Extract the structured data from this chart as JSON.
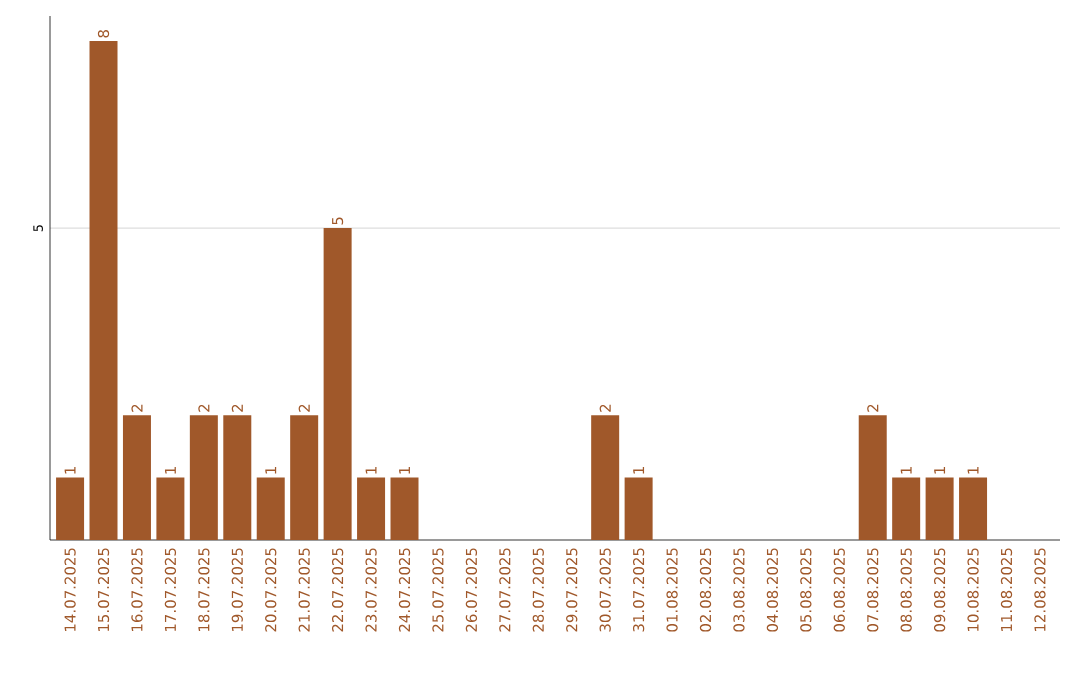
{
  "chart_data": {
    "type": "bar",
    "categories": [
      "14.07.2025",
      "15.07.2025",
      "16.07.2025",
      "17.07.2025",
      "18.07.2025",
      "19.07.2025",
      "20.07.2025",
      "21.07.2025",
      "22.07.2025",
      "23.07.2025",
      "24.07.2025",
      "25.07.2025",
      "26.07.2025",
      "27.07.2025",
      "28.07.2025",
      "29.07.2025",
      "30.07.2025",
      "31.07.2025",
      "01.08.2025",
      "02.08.2025",
      "03.08.2025",
      "04.08.2025",
      "05.08.2025",
      "06.08.2025",
      "07.08.2025",
      "08.08.2025",
      "09.08.2025",
      "10.08.2025",
      "11.08.2025",
      "12.08.2025"
    ],
    "values": [
      1,
      8,
      2,
      1,
      2,
      2,
      1,
      2,
      5,
      1,
      1,
      0,
      0,
      0,
      0,
      0,
      2,
      1,
      0,
      0,
      0,
      0,
      0,
      0,
      2,
      1,
      1,
      1,
      0,
      0
    ],
    "value_labels": [
      "1",
      "8",
      "2",
      "1",
      "2",
      "2",
      "1",
      "2",
      "5",
      "1",
      "1",
      null,
      null,
      null,
      null,
      null,
      "2",
      "1",
      null,
      null,
      null,
      null,
      null,
      null,
      "2",
      "1",
      "1",
      "1",
      null,
      null
    ],
    "color": "#a0582a",
    "ylim": [
      0,
      8.4
    ],
    "yticks": [
      5
    ],
    "grid": "y"
  }
}
